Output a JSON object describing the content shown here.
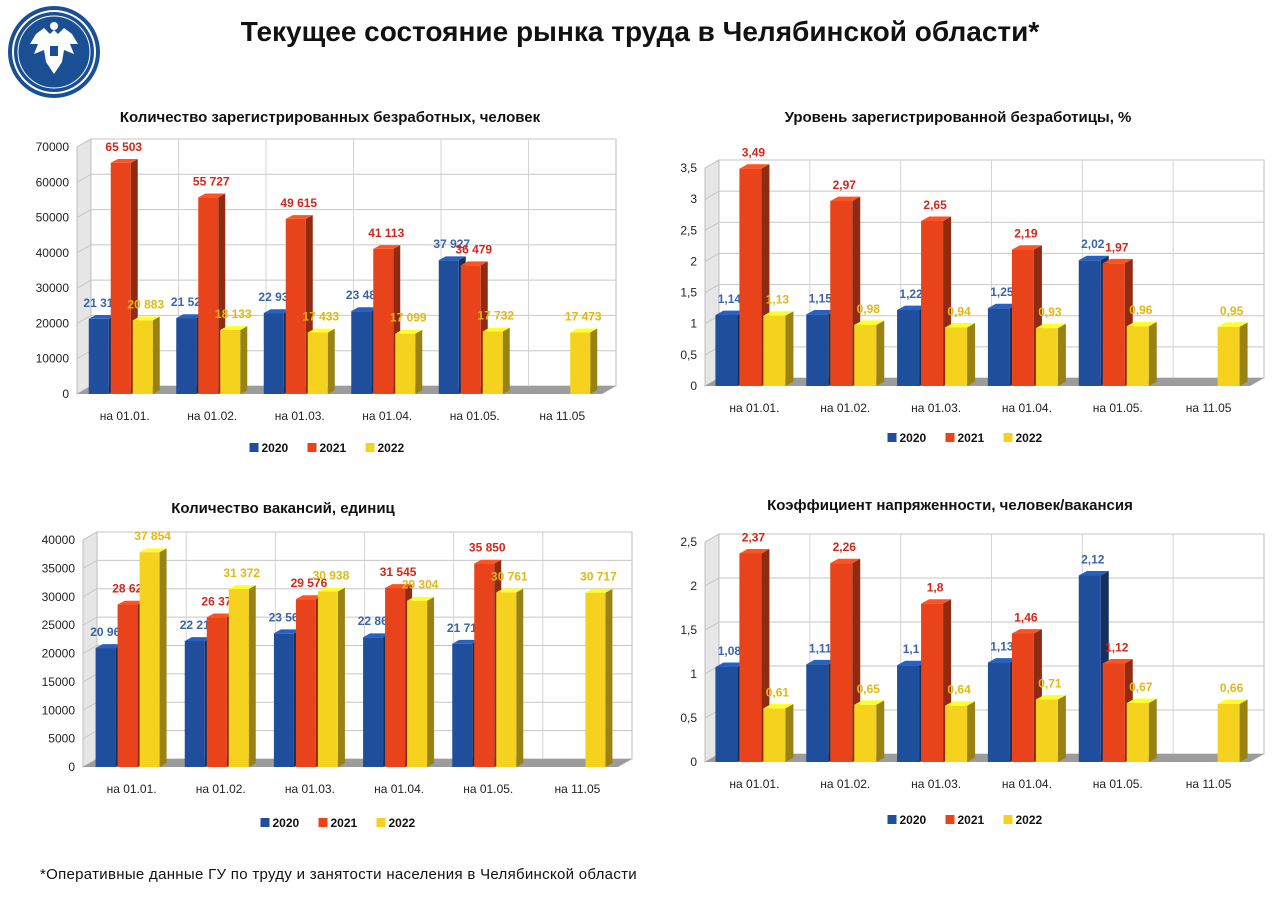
{
  "page": {
    "title": "Текущее состояние рынка труда в Челябинской области*",
    "footnote": "*Оперативные данные ГУ по труду и занятости населения в Челябинской области"
  },
  "colors": {
    "2020": "#1f4e9c",
    "2021": "#e8431a",
    "2022": "#f5d21e",
    "label_2020": "#3a64a8",
    "label_2021": "#d3261c",
    "label_2022": "#e2b812"
  },
  "icons": {
    "logo": "double-headed-eagle-emblem"
  },
  "chart_data": [
    {
      "id": "unemployed",
      "type": "bar",
      "title": "Количество зарегистрированных безработных, человек",
      "categories": [
        "на 01.01.",
        "на 01.02.",
        "на 01.03.",
        "на 01.04.",
        "на 01.05.",
        "на 11.05"
      ],
      "ylim": [
        0,
        70000
      ],
      "yticks": [
        "0",
        "10000",
        "20000",
        "30000",
        "40000",
        "50000",
        "60000",
        "70000"
      ],
      "series": [
        {
          "name": "2020",
          "values": [
            21312,
            21523,
            22939,
            23482,
            37927,
            null
          ],
          "labels": [
            "21 312",
            "21 523",
            "22 939",
            "23 482",
            "37 927",
            ""
          ]
        },
        {
          "name": "2021",
          "values": [
            65503,
            55727,
            49615,
            41113,
            36479,
            null
          ],
          "labels": [
            "65 503",
            "55 727",
            "49 615",
            "41 113",
            "36 479",
            ""
          ]
        },
        {
          "name": "2022",
          "values": [
            20883,
            18133,
            17433,
            17099,
            17732,
            17473
          ],
          "labels": [
            "20 883",
            "18 133",
            "17 433",
            "17 099",
            "17 732",
            "17 473"
          ]
        }
      ],
      "legend": [
        "2020",
        "2021",
        "2022"
      ],
      "legend_position": "bottom"
    },
    {
      "id": "unemployment-rate",
      "type": "bar",
      "title": "Уровень зарегистрированной безработицы, %",
      "categories": [
        "на 01.01.",
        "на 01.02.",
        "на 01.03.",
        "на 01.04.",
        "на 01.05.",
        "на 11.05"
      ],
      "ylim": [
        0,
        3.5
      ],
      "yticks": [
        "0",
        "0,5",
        "1",
        "1,5",
        "2",
        "2,5",
        "3",
        "3,5"
      ],
      "series": [
        {
          "name": "2020",
          "values": [
            1.14,
            1.15,
            1.22,
            1.25,
            2.02,
            null
          ],
          "labels": [
            "1,14",
            "1,15",
            "1,22",
            "1,25",
            "2,02",
            ""
          ]
        },
        {
          "name": "2021",
          "values": [
            3.49,
            2.97,
            2.65,
            2.19,
            1.97,
            null
          ],
          "labels": [
            "3,49",
            "2,97",
            "2,65",
            "2,19",
            "1,97",
            ""
          ]
        },
        {
          "name": "2022",
          "values": [
            1.13,
            0.98,
            0.94,
            0.93,
            0.96,
            0.95
          ],
          "labels": [
            "1,13",
            "0,98",
            "0,94",
            "0,93",
            "0,96",
            "0,95"
          ]
        }
      ],
      "legend": [
        "2020",
        "2021",
        "2022"
      ],
      "legend_position": "bottom"
    },
    {
      "id": "vacancies",
      "type": "bar",
      "title": "Количество вакансий, единиц",
      "categories": [
        "на 01.01.",
        "на 01.02.",
        "на 01.03.",
        "на 01.04.",
        "на 01.05.",
        "на 11.05"
      ],
      "ylim": [
        0,
        40000
      ],
      "yticks": [
        "0",
        "5000",
        "10000",
        "15000",
        "20000",
        "25000",
        "30000",
        "35000",
        "40000"
      ],
      "series": [
        {
          "name": "2020",
          "values": [
            20963,
            22211,
            23563,
            22866,
            21718,
            null
          ],
          "labels": [
            "20 963",
            "22 211",
            "23 563",
            "22 866",
            "21 718",
            ""
          ]
        },
        {
          "name": "2021",
          "values": [
            28627,
            26377,
            29576,
            31545,
            35850,
            null
          ],
          "labels": [
            "28 627",
            "26 377",
            "29 576",
            "31 545",
            "35 850",
            ""
          ]
        },
        {
          "name": "2022",
          "values": [
            37854,
            31372,
            30938,
            29304,
            30761,
            30717
          ],
          "labels": [
            "37 854",
            "31 372",
            "30 938",
            "29 304",
            "30 761",
            "30 717"
          ]
        }
      ],
      "legend": [
        "2020",
        "2021",
        "2022"
      ],
      "legend_position": "bottom"
    },
    {
      "id": "tension",
      "type": "bar",
      "title": "Коэффициент напряженности, человек/вакансия",
      "categories": [
        "на 01.01.",
        "на 01.02.",
        "на 01.03.",
        "на 01.04.",
        "на 01.05.",
        "на 11.05"
      ],
      "ylim": [
        0,
        2.5
      ],
      "yticks": [
        "0",
        "0,5",
        "1",
        "1,5",
        "2",
        "2,5"
      ],
      "series": [
        {
          "name": "2020",
          "values": [
            1.08,
            1.11,
            1.1,
            1.13,
            2.12,
            null
          ],
          "labels": [
            "1,08",
            "1,11",
            "1,1",
            "1,13",
            "2,12",
            ""
          ]
        },
        {
          "name": "2021",
          "values": [
            2.37,
            2.26,
            1.8,
            1.46,
            1.12,
            null
          ],
          "labels": [
            "2,37",
            "2,26",
            "1,8",
            "1,46",
            "1,12",
            ""
          ]
        },
        {
          "name": "2022",
          "values": [
            0.61,
            0.65,
            0.64,
            0.71,
            0.67,
            0.66
          ],
          "labels": [
            "0,61",
            "0,65",
            "0,64",
            "0,71",
            "0,67",
            "0,66"
          ]
        }
      ],
      "legend": [
        "2020",
        "2021",
        "2022"
      ],
      "legend_position": "bottom"
    }
  ]
}
